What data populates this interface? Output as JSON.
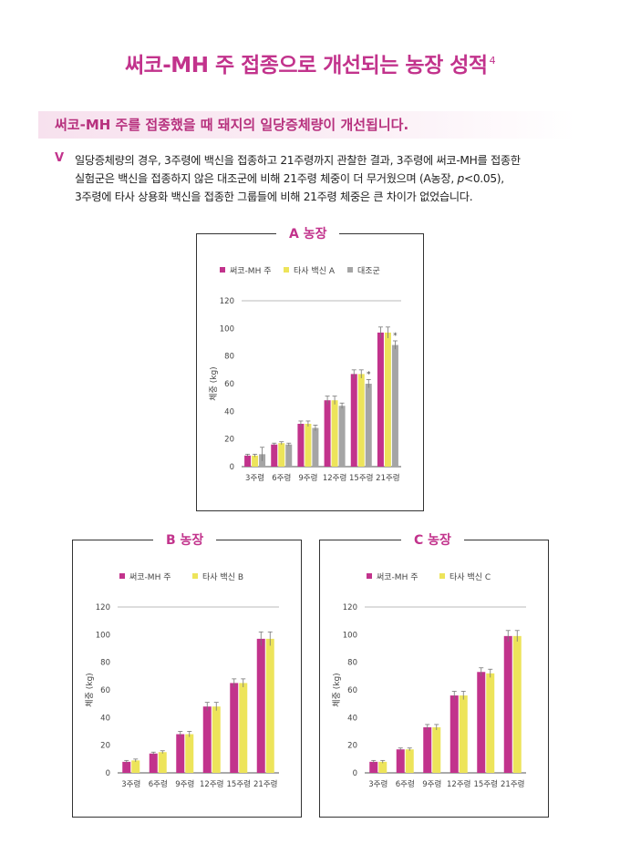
{
  "header": {
    "title": "써코-MH 주 접종으로 개선되는 농장 성적",
    "title_sup": "4",
    "subhead": "써코-MH 주를 접종했을 때 돼지의 일당증체량이 개선됩니다.",
    "bullet": "V",
    "para_line1": "일당증체량의 경우, 3주령에 백신을 접종하고 21주령까지 관찰한 결과, 3주령에 써코-MH를 접종한",
    "para_line2a": "실험군은 백신을 접종하지 않은 대조군에 비해 21주령 체중이 더 무거웠으며 (A농장, ",
    "para_line2_p": "p",
    "para_line2b": "<0.05),",
    "para_line3": "3주령에 타사 상용화 백신을 접종한 그룹들에 비해 21주령 체중은 큰 차이가 없었습니다."
  },
  "colors": {
    "brand": "#c2338c",
    "series1": "#c2338c",
    "series2": "#ede45a",
    "series3": "#a5a5a5"
  },
  "chart_data": [
    {
      "type": "bar",
      "box_title": "A 농장",
      "categories": [
        "3주령",
        "6주령",
        "9주령",
        "12주령",
        "15주령",
        "21주령"
      ],
      "series": [
        {
          "name": "써코-MH 주",
          "values": [
            8,
            16,
            31,
            48,
            67,
            97
          ],
          "errors": [
            1,
            1,
            2,
            3,
            3,
            4
          ]
        },
        {
          "name": "타사 백신 A",
          "values": [
            8,
            17,
            31,
            48,
            67,
            97
          ],
          "errors": [
            1,
            1,
            2,
            3,
            3,
            4
          ]
        },
        {
          "name": "대조군",
          "values": [
            9,
            16,
            28,
            44,
            60,
            88
          ],
          "errors": [
            5,
            1,
            2,
            2,
            3,
            3
          ]
        }
      ],
      "annotations": [
        {
          "category": "15주령",
          "series": "대조군",
          "text": "*"
        },
        {
          "category": "21주령",
          "series": "대조군",
          "text": "*"
        }
      ],
      "ylabel": "체중 (kg)",
      "ylim": [
        0,
        120
      ],
      "yticks": [
        "0",
        "20",
        "40",
        "60",
        "80",
        "100",
        "120"
      ],
      "grid": false,
      "legend": "top"
    },
    {
      "type": "bar",
      "box_title": "B 농장",
      "categories": [
        "3주령",
        "6주령",
        "9주령",
        "12주령",
        "15주령",
        "21주령"
      ],
      "series": [
        {
          "name": "써코-MH 주",
          "values": [
            8,
            14,
            28,
            48,
            65,
            97
          ],
          "errors": [
            1,
            1,
            2,
            3,
            3,
            5
          ]
        },
        {
          "name": "타사 백신 B",
          "values": [
            9,
            15,
            28,
            48,
            65,
            97
          ],
          "errors": [
            1,
            1,
            2,
            3,
            3,
            5
          ]
        }
      ],
      "annotations": [],
      "ylabel": "체중 (kg)",
      "ylim": [
        0,
        120
      ],
      "yticks": [
        "0",
        "20",
        "40",
        "60",
        "80",
        "100",
        "120"
      ],
      "grid": false,
      "legend": "top"
    },
    {
      "type": "bar",
      "box_title": "C 농장",
      "categories": [
        "3주령",
        "6주령",
        "9주령",
        "12주령",
        "15주령",
        "21주령"
      ],
      "series": [
        {
          "name": "써코-MH 주",
          "values": [
            8,
            17,
            33,
            56,
            73,
            99
          ],
          "errors": [
            1,
            1,
            2,
            3,
            3,
            4
          ]
        },
        {
          "name": "타사 백신 C",
          "values": [
            8,
            17,
            33,
            56,
            72,
            99
          ],
          "errors": [
            1,
            1,
            2,
            3,
            3,
            4
          ]
        }
      ],
      "annotations": [],
      "ylabel": "체중 (kg)",
      "ylim": [
        0,
        120
      ],
      "yticks": [
        "0",
        "20",
        "40",
        "60",
        "80",
        "100",
        "120"
      ],
      "grid": false,
      "legend": "top"
    }
  ]
}
